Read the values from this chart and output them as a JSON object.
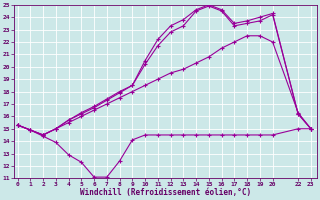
{
  "bg_color": "#cce8e8",
  "grid_color": "#aadddd",
  "line_color": "#990099",
  "xlabel": "Windchill (Refroidissement éolien,°C)",
  "xlabel_color": "#660066",
  "tick_color": "#660066",
  "ylim": [
    11,
    25
  ],
  "yticks": [
    11,
    12,
    13,
    14,
    15,
    16,
    17,
    18,
    19,
    20,
    21,
    22,
    23,
    24,
    25
  ],
  "xticks": [
    0,
    1,
    2,
    3,
    4,
    5,
    6,
    7,
    8,
    9,
    10,
    11,
    12,
    13,
    14,
    15,
    16,
    17,
    18,
    19,
    20,
    22,
    23
  ],
  "xlim": [
    -0.3,
    23.5
  ],
  "series": [
    {
      "x": [
        0,
        1,
        2,
        3,
        4,
        5,
        6,
        7,
        8,
        9,
        10,
        11,
        12,
        13,
        14,
        15,
        16,
        17,
        18,
        19,
        20,
        22,
        23
      ],
      "y": [
        15.3,
        14.9,
        14.4,
        13.9,
        12.9,
        12.3,
        11.1,
        11.1,
        12.4,
        14.1,
        14.5,
        14.5,
        14.5,
        14.5,
        14.5,
        14.5,
        14.5,
        14.5,
        14.5,
        14.5,
        14.5,
        15.0,
        15.0
      ]
    },
    {
      "x": [
        0,
        1,
        2,
        3,
        4,
        5,
        6,
        7,
        8,
        9,
        10,
        11,
        12,
        13,
        14,
        15,
        16,
        17,
        18,
        19,
        20,
        22,
        23
      ],
      "y": [
        15.3,
        14.9,
        14.5,
        15.0,
        15.5,
        16.0,
        16.5,
        17.0,
        17.5,
        18.0,
        18.5,
        19.0,
        19.5,
        19.8,
        20.3,
        20.8,
        21.5,
        22.0,
        22.5,
        22.5,
        22.0,
        16.3,
        15.0
      ]
    },
    {
      "x": [
        0,
        1,
        2,
        3,
        4,
        5,
        6,
        7,
        8,
        9,
        10,
        11,
        12,
        13,
        14,
        15,
        16,
        17,
        18,
        19,
        20,
        22,
        23
      ],
      "y": [
        15.3,
        14.9,
        14.5,
        15.0,
        15.7,
        16.2,
        16.7,
        17.3,
        17.9,
        18.5,
        20.2,
        21.7,
        22.8,
        23.3,
        24.5,
        24.9,
        24.5,
        23.3,
        23.5,
        23.7,
        24.2,
        16.2,
        15.0
      ]
    },
    {
      "x": [
        0,
        1,
        2,
        3,
        4,
        5,
        6,
        7,
        8,
        9,
        10,
        11,
        12,
        13,
        14,
        15,
        16,
        17,
        18,
        19,
        20,
        22,
        23
      ],
      "y": [
        15.3,
        14.9,
        14.5,
        15.0,
        15.7,
        16.3,
        16.8,
        17.4,
        18.0,
        18.5,
        20.5,
        22.2,
        23.3,
        23.8,
        24.6,
        25.0,
        24.6,
        23.5,
        23.7,
        24.0,
        24.3,
        16.2,
        15.0
      ]
    }
  ]
}
